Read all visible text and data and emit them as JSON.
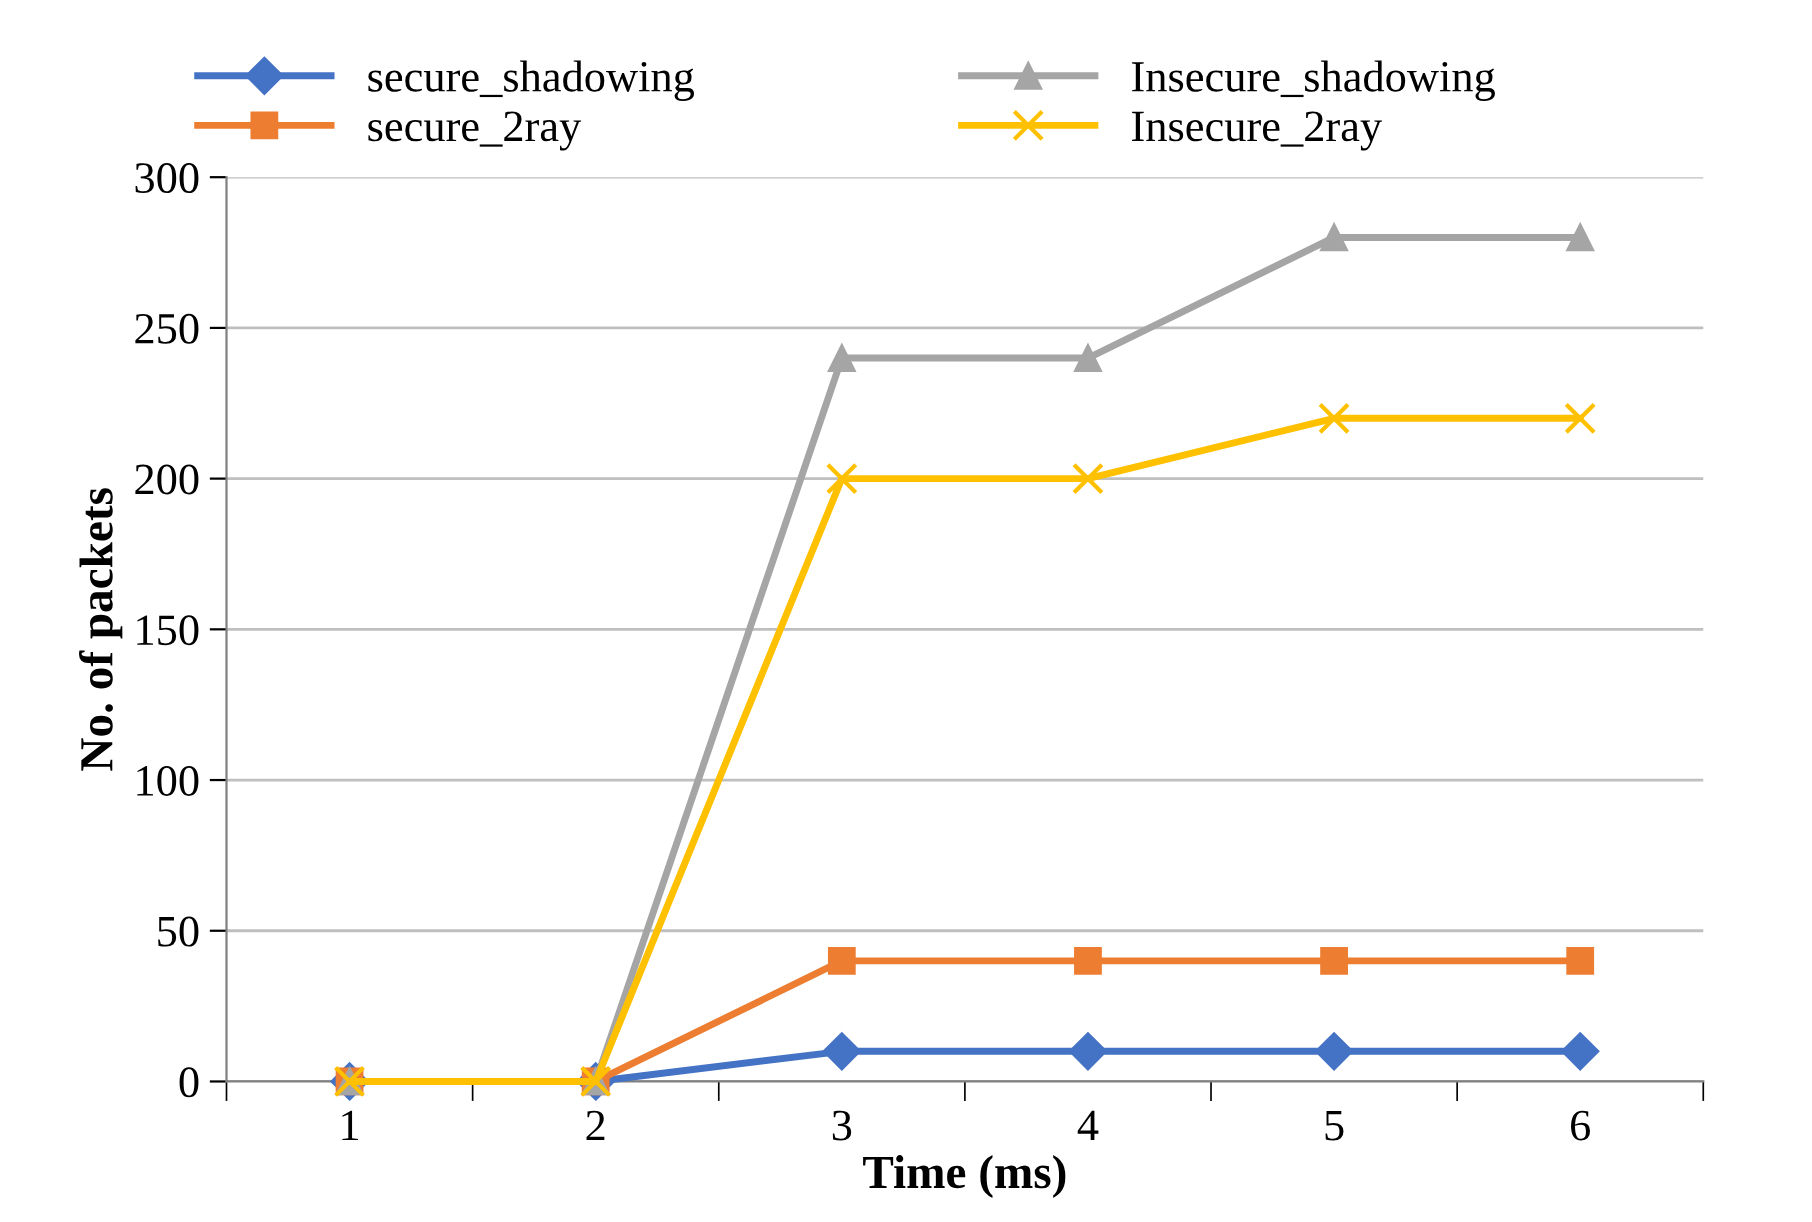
{
  "chart_data": {
    "type": "line",
    "xlabel": "Time (ms)",
    "ylabel": "No. of packets",
    "categories": [
      "1",
      "2",
      "3",
      "4",
      "5",
      "6"
    ],
    "series": [
      {
        "name": "secure_shadowing",
        "color": "#4472c4",
        "marker": "diamond",
        "values": [
          0,
          0,
          10,
          10,
          10,
          10
        ]
      },
      {
        "name": "secure_2ray",
        "color": "#ed7d31",
        "marker": "square",
        "values": [
          0,
          0,
          40,
          40,
          40,
          40
        ]
      },
      {
        "name": "Insecure_shadowing",
        "color": "#a5a5a5",
        "marker": "triangle",
        "values": [
          0,
          0,
          240,
          240,
          280,
          280
        ]
      },
      {
        "name": "Insecure_2ray",
        "color": "#ffc000",
        "marker": "cross",
        "values": [
          0,
          0,
          200,
          200,
          220,
          220
        ]
      }
    ],
    "ylim": [
      0,
      300
    ],
    "yticks": [
      0,
      50,
      100,
      150,
      200,
      250,
      300
    ],
    "grid": "y",
    "legend": "top",
    "line_style": "solid"
  }
}
